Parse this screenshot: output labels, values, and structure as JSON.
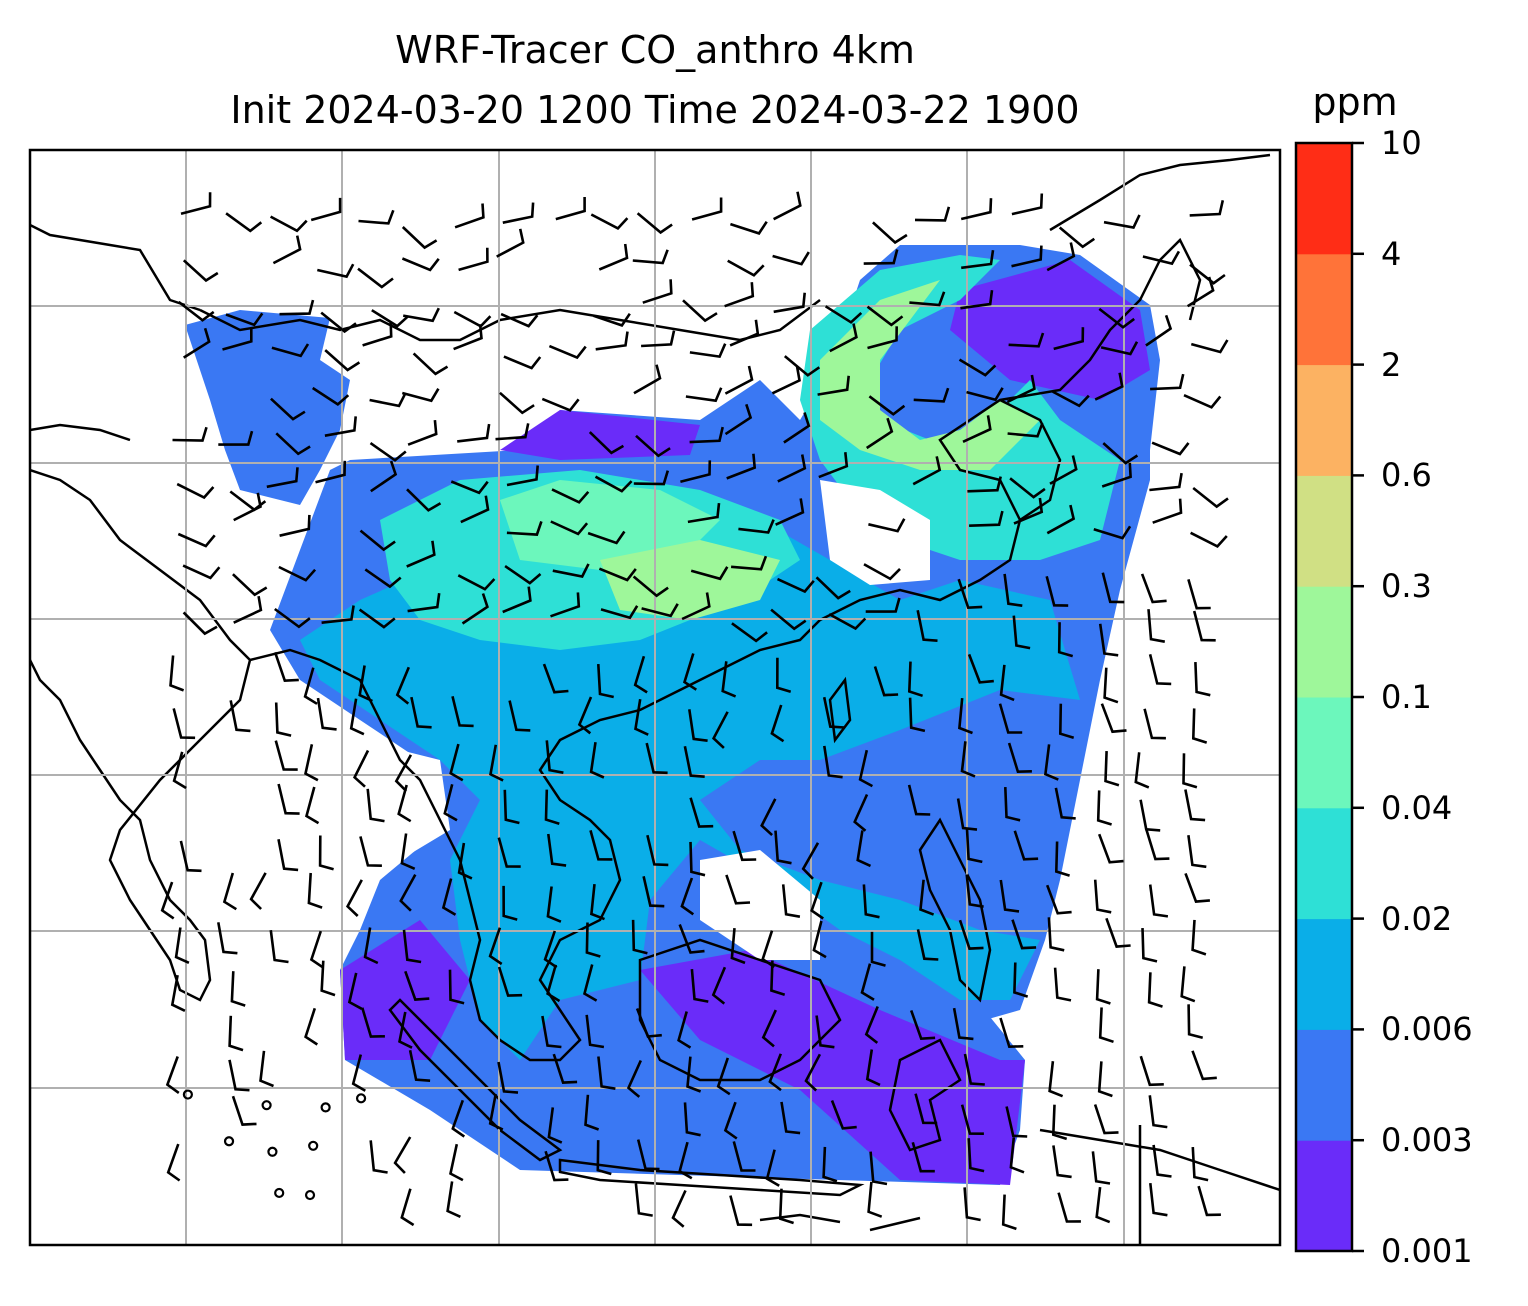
{
  "title": {
    "line1": "WRF-Tracer CO_anthro 4km",
    "line2": "Init 2024-03-20 1200 Time 2024-03-22 1900"
  },
  "colorbar": {
    "unit": "ppm",
    "levels": [
      "0.001",
      "0.003",
      "0.006",
      "0.02",
      "0.04",
      "0.1",
      "0.3",
      "0.6",
      "2",
      "4",
      "10"
    ],
    "colors": [
      "#6a2cf9",
      "#3a78f3",
      "#0aaee8",
      "#2ee0d6",
      "#6cf7bc",
      "#9ef79a",
      "#d0e084",
      "#fcb262",
      "#ff7339",
      "#ff2d16"
    ]
  },
  "map": {
    "gridline_color": "#b0b0b0",
    "coastline_color": "#000000",
    "background": "#ffffff"
  }
}
